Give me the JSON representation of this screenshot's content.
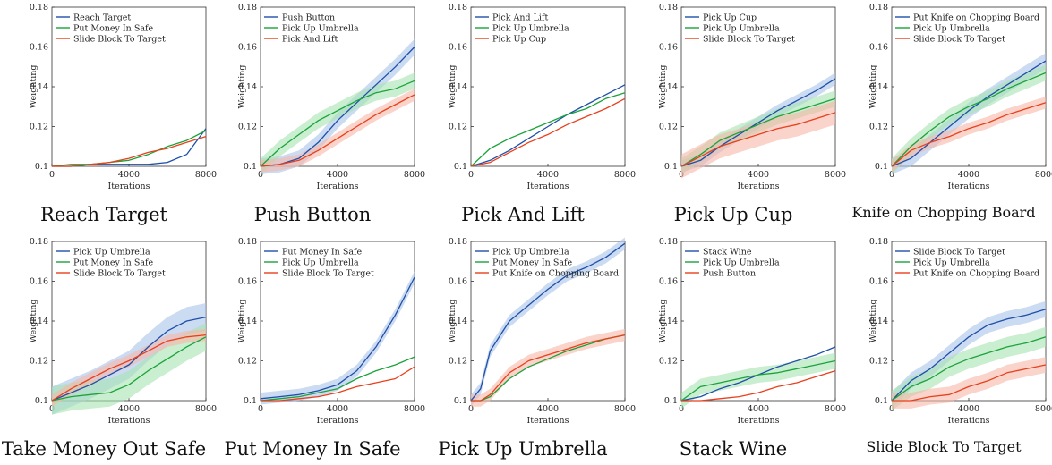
{
  "figure": {
    "colors": {
      "blue": "#1f4fa8",
      "green": "#1aa33a",
      "red": "#e8401c",
      "blue_band": "#a9c3ea",
      "green_band": "#a6e3b0",
      "red_band": "#f6b6a6"
    }
  },
  "chart_data": [
    {
      "type": "line",
      "title": "Reach Target",
      "xlabel": "Iterations",
      "ylabel": "Weighting",
      "xlim": [
        0,
        8000
      ],
      "ylim": [
        0.1,
        0.18
      ],
      "x_ticks": [
        0,
        4000,
        8000
      ],
      "y_ticks": [
        0.1,
        0.12,
        0.14,
        0.16,
        0.18
      ],
      "legend": "top-left",
      "x": [
        0,
        1000,
        2000,
        3000,
        4000,
        5000,
        6000,
        7000,
        8000
      ],
      "series": [
        {
          "name": "Reach Target",
          "color": "#1f4fa8",
          "values": [
            0.1,
            0.1,
            0.101,
            0.101,
            0.101,
            0.101,
            0.102,
            0.106,
            0.119
          ]
        },
        {
          "name": "Put Money In Safe",
          "color": "#1aa33a",
          "values": [
            0.1,
            0.101,
            0.101,
            0.102,
            0.103,
            0.106,
            0.11,
            0.113,
            0.118
          ]
        },
        {
          "name": "Slide Block To Target",
          "color": "#e8401c",
          "values": [
            0.1,
            0.1,
            0.101,
            0.102,
            0.104,
            0.107,
            0.109,
            0.112,
            0.115
          ]
        }
      ]
    },
    {
      "type": "line",
      "title": "Push Button",
      "xlabel": "Iterations",
      "ylabel": "Weighting",
      "xlim": [
        0,
        8000
      ],
      "ylim": [
        0.1,
        0.18
      ],
      "x_ticks": [
        0,
        4000,
        8000
      ],
      "y_ticks": [
        0.1,
        0.12,
        0.14,
        0.16,
        0.18
      ],
      "legend": "top-left",
      "x": [
        0,
        1000,
        2000,
        3000,
        4000,
        5000,
        6000,
        7000,
        8000
      ],
      "series": [
        {
          "name": "Push Button",
          "color": "#1f4fa8",
          "values": [
            0.1,
            0.101,
            0.104,
            0.112,
            0.123,
            0.132,
            0.141,
            0.15,
            0.16
          ],
          "band": 0.004
        },
        {
          "name": "Pick Up Umbrella",
          "color": "#1aa33a",
          "values": [
            0.1,
            0.109,
            0.116,
            0.123,
            0.128,
            0.133,
            0.137,
            0.139,
            0.143
          ],
          "band": 0.004
        },
        {
          "name": "Pick And Lift",
          "color": "#e8401c",
          "values": [
            0.1,
            0.101,
            0.103,
            0.108,
            0.114,
            0.12,
            0.126,
            0.131,
            0.136
          ],
          "band": 0.003
        }
      ]
    },
    {
      "type": "line",
      "title": "Pick And Lift",
      "xlabel": "Iterations",
      "ylabel": "Weighting",
      "xlim": [
        0,
        8000
      ],
      "ylim": [
        0.1,
        0.18
      ],
      "x_ticks": [
        0,
        4000,
        8000
      ],
      "y_ticks": [
        0.1,
        0.12,
        0.14,
        0.16,
        0.18
      ],
      "legend": "top-left",
      "x": [
        0,
        1000,
        2000,
        3000,
        4000,
        5000,
        6000,
        7000,
        8000
      ],
      "series": [
        {
          "name": "Pick And Lift",
          "color": "#1f4fa8",
          "values": [
            0.1,
            0.103,
            0.108,
            0.114,
            0.12,
            0.126,
            0.131,
            0.136,
            0.141
          ]
        },
        {
          "name": "Pick Up Umbrella",
          "color": "#1aa33a",
          "values": [
            0.1,
            0.109,
            0.114,
            0.118,
            0.122,
            0.126,
            0.129,
            0.134,
            0.137
          ]
        },
        {
          "name": "Pick Up Cup",
          "color": "#e8401c",
          "values": [
            0.1,
            0.102,
            0.107,
            0.112,
            0.116,
            0.121,
            0.125,
            0.129,
            0.134
          ]
        }
      ]
    },
    {
      "type": "line",
      "title": "Pick Up Cup",
      "xlabel": "Iterations",
      "ylabel": "Weighting",
      "xlim": [
        0,
        8000
      ],
      "ylim": [
        0.1,
        0.18
      ],
      "x_ticks": [
        0,
        4000,
        8000
      ],
      "y_ticks": [
        0.1,
        0.12,
        0.14,
        0.16,
        0.18
      ],
      "legend": "top-left",
      "x": [
        0,
        1000,
        2000,
        3000,
        4000,
        5000,
        6000,
        7000,
        8000
      ],
      "series": [
        {
          "name": "Pick Up Cup",
          "color": "#1f4fa8",
          "values": [
            0.1,
            0.103,
            0.11,
            0.116,
            0.122,
            0.128,
            0.133,
            0.138,
            0.144
          ],
          "band": 0.003
        },
        {
          "name": "Pick Up Umbrella",
          "color": "#1aa33a",
          "values": [
            0.1,
            0.106,
            0.113,
            0.117,
            0.121,
            0.125,
            0.128,
            0.131,
            0.134
          ],
          "band": 0.004
        },
        {
          "name": "Slide Block To Target",
          "color": "#e8401c",
          "values": [
            0.1,
            0.105,
            0.11,
            0.113,
            0.116,
            0.119,
            0.121,
            0.124,
            0.127
          ],
          "band": 0.006
        }
      ]
    },
    {
      "type": "line",
      "title": "Knife on Chopping Board",
      "xlabel": "Iterations",
      "ylabel": "Weighting",
      "xlim": [
        0,
        8000
      ],
      "ylim": [
        0.1,
        0.18
      ],
      "x_ticks": [
        0,
        4000,
        8000
      ],
      "y_ticks": [
        0.1,
        0.12,
        0.14,
        0.16,
        0.18
      ],
      "legend": "top-left",
      "x": [
        0,
        1000,
        2000,
        3000,
        4000,
        5000,
        6000,
        7000,
        8000
      ],
      "series": [
        {
          "name": "Put Knife on Chopping Board",
          "color": "#1f4fa8",
          "values": [
            0.1,
            0.104,
            0.112,
            0.12,
            0.128,
            0.135,
            0.141,
            0.147,
            0.153
          ],
          "band": 0.004
        },
        {
          "name": "Pick Up Umbrella",
          "color": "#1aa33a",
          "values": [
            0.1,
            0.11,
            0.118,
            0.125,
            0.13,
            0.134,
            0.139,
            0.143,
            0.147
          ],
          "band": 0.004
        },
        {
          "name": "Slide Block To Target",
          "color": "#e8401c",
          "values": [
            0.1,
            0.108,
            0.112,
            0.115,
            0.119,
            0.122,
            0.126,
            0.129,
            0.132
          ],
          "band": 0.003
        }
      ]
    },
    {
      "type": "line",
      "title": "Take Money Out Safe",
      "xlabel": "Iterations",
      "ylabel": "Weighting",
      "xlim": [
        0,
        8000
      ],
      "ylim": [
        0.1,
        0.18
      ],
      "x_ticks": [
        0,
        4000,
        8000
      ],
      "y_ticks": [
        0.1,
        0.12,
        0.14,
        0.16,
        0.18
      ],
      "legend": "top-left",
      "x": [
        0,
        1000,
        2000,
        3000,
        4000,
        5000,
        6000,
        7000,
        8000
      ],
      "series": [
        {
          "name": "Pick Up Umbrella",
          "color": "#1f4fa8",
          "values": [
            0.1,
            0.104,
            0.108,
            0.113,
            0.118,
            0.127,
            0.135,
            0.14,
            0.142
          ],
          "band": 0.007
        },
        {
          "name": "Put Money In Safe",
          "color": "#1aa33a",
          "values": [
            0.1,
            0.102,
            0.103,
            0.104,
            0.108,
            0.115,
            0.121,
            0.127,
            0.132
          ],
          "band": 0.007
        },
        {
          "name": "Slide Block To Target",
          "color": "#e8401c",
          "values": [
            0.1,
            0.106,
            0.111,
            0.116,
            0.12,
            0.125,
            0.13,
            0.132,
            0.133
          ],
          "band": 0.003
        }
      ]
    },
    {
      "type": "line",
      "title": "Put Money In Safe",
      "xlabel": "Iterations",
      "ylabel": "Weighting",
      "xlim": [
        0,
        8000
      ],
      "ylim": [
        0.1,
        0.18
      ],
      "x_ticks": [
        0,
        4000,
        8000
      ],
      "y_ticks": [
        0.1,
        0.12,
        0.14,
        0.16,
        0.18
      ],
      "legend": "top-left",
      "x": [
        0,
        1000,
        2000,
        3000,
        4000,
        5000,
        6000,
        7000,
        8000
      ],
      "series": [
        {
          "name": "Put Money In Safe",
          "color": "#1f4fa8",
          "values": [
            0.101,
            0.102,
            0.103,
            0.105,
            0.108,
            0.115,
            0.127,
            0.143,
            0.162
          ],
          "band": 0.003
        },
        {
          "name": "Pick Up Umbrella",
          "color": "#1aa33a",
          "values": [
            0.1,
            0.101,
            0.102,
            0.104,
            0.106,
            0.111,
            0.115,
            0.118,
            0.122
          ]
        },
        {
          "name": "Slide Block To Target",
          "color": "#e8401c",
          "values": [
            0.1,
            0.1,
            0.101,
            0.102,
            0.104,
            0.107,
            0.109,
            0.111,
            0.117
          ]
        }
      ]
    },
    {
      "type": "line",
      "title": "Pick Up Umbrella",
      "xlabel": "Iterations",
      "ylabel": "Weighting",
      "xlim": [
        0,
        8000
      ],
      "ylim": [
        0.1,
        0.18
      ],
      "x_ticks": [
        0,
        4000,
        8000
      ],
      "y_ticks": [
        0.1,
        0.12,
        0.14,
        0.16,
        0.18
      ],
      "legend": "top-left",
      "x": [
        0,
        500,
        1000,
        2000,
        3000,
        4000,
        5000,
        6000,
        7000,
        8000
      ],
      "series": [
        {
          "name": "Pick Up Umbrella",
          "color": "#1f4fa8",
          "values": [
            0.1,
            0.106,
            0.125,
            0.14,
            0.148,
            0.156,
            0.163,
            0.167,
            0.172,
            0.179
          ],
          "band": 0.003
        },
        {
          "name": "Put Money In Safe",
          "color": "#1aa33a",
          "values": [
            0.1,
            0.1,
            0.102,
            0.111,
            0.117,
            0.121,
            0.125,
            0.128,
            0.131,
            0.133
          ]
        },
        {
          "name": "Put Knife on Chopping Board",
          "color": "#e8401c",
          "values": [
            0.1,
            0.1,
            0.103,
            0.114,
            0.12,
            0.123,
            0.126,
            0.129,
            0.131,
            0.133
          ],
          "band": 0.003
        }
      ]
    },
    {
      "type": "line",
      "title": "Stack Wine",
      "xlabel": "Iterations",
      "ylabel": "Weighting",
      "xlim": [
        0,
        8000
      ],
      "ylim": [
        0.1,
        0.18
      ],
      "x_ticks": [
        0,
        4000,
        8000
      ],
      "y_ticks": [
        0.1,
        0.12,
        0.14,
        0.16,
        0.18
      ],
      "legend": "top-left",
      "x": [
        0,
        1000,
        2000,
        3000,
        4000,
        5000,
        6000,
        7000,
        8000
      ],
      "series": [
        {
          "name": "Stack Wine",
          "color": "#1f4fa8",
          "values": [
            0.1,
            0.102,
            0.106,
            0.109,
            0.113,
            0.117,
            0.12,
            0.123,
            0.127
          ]
        },
        {
          "name": "Pick Up Umbrella",
          "color": "#1aa33a",
          "values": [
            0.1,
            0.107,
            0.109,
            0.111,
            0.113,
            0.114,
            0.116,
            0.118,
            0.12
          ],
          "band": 0.004
        },
        {
          "name": "Push Button",
          "color": "#e8401c",
          "values": [
            0.1,
            0.1,
            0.101,
            0.102,
            0.104,
            0.107,
            0.109,
            0.112,
            0.115
          ]
        }
      ]
    },
    {
      "type": "line",
      "title": "Slide Block To Target",
      "xlabel": "Iterations",
      "ylabel": "Weighting",
      "xlim": [
        0,
        8000
      ],
      "ylim": [
        0.1,
        0.18
      ],
      "x_ticks": [
        0,
        4000,
        8000
      ],
      "y_ticks": [
        0.1,
        0.12,
        0.14,
        0.16,
        0.18
      ],
      "legend": "top-left",
      "x": [
        0,
        1000,
        2000,
        3000,
        4000,
        5000,
        6000,
        7000,
        8000
      ],
      "series": [
        {
          "name": "Slide Block To Target",
          "color": "#1f4fa8",
          "values": [
            0.1,
            0.11,
            0.116,
            0.124,
            0.132,
            0.138,
            0.141,
            0.143,
            0.146
          ],
          "band": 0.004
        },
        {
          "name": "Pick Up Umbrella",
          "color": "#1aa33a",
          "values": [
            0.1,
            0.107,
            0.111,
            0.117,
            0.121,
            0.124,
            0.127,
            0.129,
            0.132
          ],
          "band": 0.005
        },
        {
          "name": "Put Knife on Chopping Board",
          "color": "#e8401c",
          "values": [
            0.1,
            0.1,
            0.102,
            0.103,
            0.107,
            0.11,
            0.114,
            0.116,
            0.118
          ],
          "band": 0.004
        }
      ]
    }
  ]
}
